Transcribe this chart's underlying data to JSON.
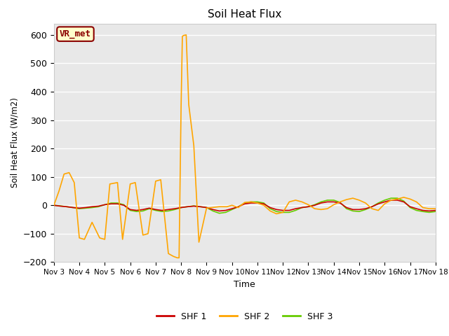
{
  "title": "Soil Heat Flux",
  "xlabel": "Time",
  "ylabel": "Soil Heat Flux (W/m2)",
  "ylim": [
    -200,
    640
  ],
  "yticks": [
    -200,
    -100,
    0,
    100,
    200,
    300,
    400,
    500,
    600
  ],
  "plot_bg_color": "#e8e8e8",
  "fig_bg_color": "#ffffff",
  "legend_label": "VR_met",
  "series": {
    "SHF1": {
      "color": "#cc0000",
      "x": [
        3.0,
        3.25,
        3.5,
        3.75,
        4.0,
        4.25,
        4.5,
        4.75,
        5.0,
        5.25,
        5.5,
        5.75,
        6.0,
        6.25,
        6.5,
        6.75,
        7.0,
        7.25,
        7.5,
        7.75,
        8.0,
        8.25,
        8.5,
        8.75,
        9.0,
        9.25,
        9.5,
        9.75,
        10.0,
        10.25,
        10.5,
        10.75,
        11.0,
        11.25,
        11.5,
        11.75,
        12.0,
        12.25,
        12.5,
        12.75,
        13.0,
        13.25,
        13.5,
        13.75,
        14.0,
        14.25,
        14.5,
        14.75,
        15.0,
        15.25,
        15.5,
        15.75,
        16.0,
        16.25,
        16.5,
        16.75,
        17.0,
        17.25,
        17.5,
        17.75,
        18.0
      ],
      "y": [
        0,
        -3,
        -5,
        -8,
        -10,
        -8,
        -5,
        -3,
        2,
        5,
        5,
        0,
        -15,
        -18,
        -15,
        -10,
        -15,
        -18,
        -15,
        -12,
        -8,
        -5,
        -3,
        -5,
        -8,
        -15,
        -20,
        -18,
        -12,
        -5,
        5,
        8,
        8,
        5,
        -8,
        -15,
        -18,
        -18,
        -12,
        -8,
        -5,
        0,
        8,
        12,
        12,
        8,
        -8,
        -15,
        -15,
        -12,
        -5,
        5,
        12,
        18,
        18,
        12,
        -5,
        -12,
        -18,
        -20,
        -18
      ]
    },
    "SHF2": {
      "color": "#ffa500",
      "x": [
        3.0,
        3.2,
        3.4,
        3.6,
        3.8,
        4.0,
        4.2,
        4.5,
        4.8,
        5.0,
        5.2,
        5.5,
        5.7,
        6.0,
        6.2,
        6.5,
        6.7,
        7.0,
        7.2,
        7.5,
        7.7,
        7.85,
        7.92,
        8.0,
        8.05,
        8.1,
        8.2,
        8.3,
        8.5,
        8.7,
        9.0,
        9.2,
        9.5,
        9.8,
        10.0,
        10.25,
        10.5,
        10.75,
        11.0,
        11.25,
        11.5,
        11.75,
        12.0,
        12.25,
        12.5,
        12.75,
        13.0,
        13.25,
        13.5,
        13.75,
        14.0,
        14.25,
        14.5,
        14.75,
        15.0,
        15.25,
        15.5,
        15.75,
        16.0,
        16.25,
        16.5,
        16.75,
        17.0,
        17.25,
        17.5,
        17.75,
        18.0
      ],
      "y": [
        0,
        50,
        110,
        115,
        80,
        -115,
        -120,
        -60,
        -115,
        -120,
        75,
        80,
        -120,
        75,
        80,
        -105,
        -100,
        85,
        90,
        -170,
        -180,
        -185,
        -185,
        350,
        595,
        598,
        600,
        355,
        210,
        -130,
        -10,
        -8,
        -5,
        -5,
        0,
        -8,
        10,
        12,
        8,
        0,
        -20,
        -30,
        -25,
        12,
        18,
        12,
        2,
        -12,
        -15,
        -12,
        2,
        12,
        20,
        25,
        18,
        8,
        -12,
        -18,
        5,
        18,
        22,
        28,
        22,
        12,
        -8,
        -12,
        -12
      ]
    },
    "SHF3": {
      "color": "#66cc00",
      "x": [
        3.0,
        3.25,
        3.5,
        3.75,
        4.0,
        4.25,
        4.5,
        4.75,
        5.0,
        5.25,
        5.5,
        5.75,
        6.0,
        6.25,
        6.5,
        6.75,
        7.0,
        7.25,
        7.5,
        7.75,
        8.0,
        8.25,
        8.5,
        8.75,
        9.0,
        9.25,
        9.5,
        9.75,
        10.0,
        10.25,
        10.5,
        10.75,
        11.0,
        11.25,
        11.5,
        11.75,
        12.0,
        12.25,
        12.5,
        12.75,
        13.0,
        13.25,
        13.5,
        13.75,
        14.0,
        14.25,
        14.5,
        14.75,
        15.0,
        15.25,
        15.5,
        15.75,
        16.0,
        16.25,
        16.5,
        16.75,
        17.0,
        17.25,
        17.5,
        17.75,
        18.0
      ],
      "y": [
        0,
        -2,
        -5,
        -8,
        -12,
        -10,
        -8,
        -5,
        2,
        8,
        8,
        2,
        -18,
        -22,
        -20,
        -12,
        -18,
        -22,
        -20,
        -15,
        -8,
        -5,
        -2,
        -5,
        -8,
        -20,
        -28,
        -25,
        -15,
        -5,
        8,
        12,
        12,
        8,
        -12,
        -22,
        -25,
        -25,
        -18,
        -8,
        -5,
        2,
        12,
        18,
        18,
        10,
        -12,
        -20,
        -22,
        -15,
        -5,
        8,
        18,
        25,
        25,
        15,
        -8,
        -18,
        -22,
        -25,
        -22
      ]
    }
  },
  "xtick_labels": [
    "Nov 3",
    "Nov 4",
    "Nov 5",
    "Nov 6",
    "Nov 7",
    "Nov 8",
    "Nov 9",
    "Nov 10",
    "Nov 11",
    "Nov 12",
    "Nov 13",
    "Nov 14",
    "Nov 15",
    "Nov 16",
    "Nov 17",
    "Nov 18"
  ],
  "xtick_positions": [
    3,
    4,
    5,
    6,
    7,
    8,
    9,
    10,
    11,
    12,
    13,
    14,
    15,
    16,
    17,
    18
  ]
}
